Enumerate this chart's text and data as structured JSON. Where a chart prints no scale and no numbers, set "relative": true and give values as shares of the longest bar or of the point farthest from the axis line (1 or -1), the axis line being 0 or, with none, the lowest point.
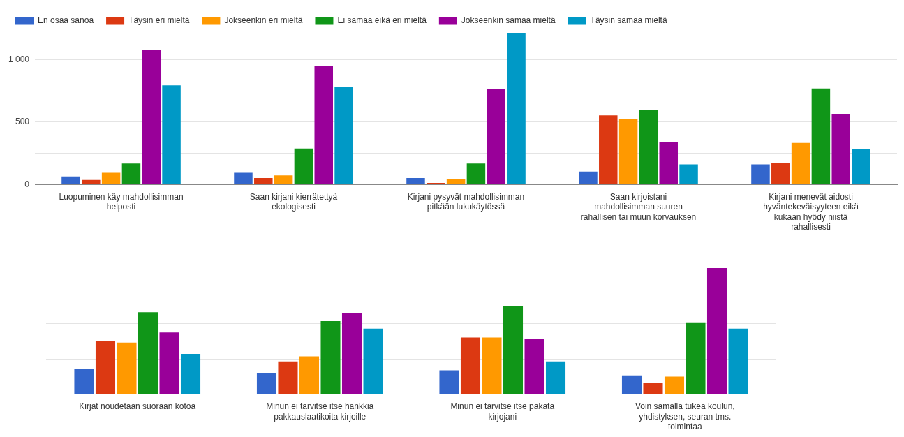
{
  "chart_data": [
    {
      "type": "bar",
      "categories": [
        "Luopuminen käy mahdollisimman helposti",
        "Saan kirjani kierrätettyä ekologisesti",
        "Kirjani pysyvät mahdollisimman pitkään lukukäytössä",
        "Saan kirjoistani mahdollisimman suuren rahallisen tai muun korvauksen",
        "Kirjani menevät aidosti hyväntekeväisyyteen eikä kukaan hyödy niistä rahallisesti"
      ],
      "series": [
        {
          "name": "En osaa sanoa",
          "color": "#3366cc",
          "values": [
            65,
            94,
            53,
            104,
            161
          ]
        },
        {
          "name": "Täysin eri mieltä",
          "color": "#dc3912",
          "values": [
            37,
            53,
            14,
            554,
            175
          ]
        },
        {
          "name": "Jokseenkin eri mieltä",
          "color": "#ff9900",
          "values": [
            94,
            74,
            44,
            527,
            333
          ]
        },
        {
          "name": "Ei samaa eikä eri mieltä",
          "color": "#109618",
          "values": [
            168,
            288,
            168,
            596,
            769
          ]
        },
        {
          "name": "Jokseenkin samaa mieltä",
          "color": "#990099",
          "values": [
            1081,
            947,
            762,
            339,
            561
          ]
        },
        {
          "name": "Täysin samaa mieltä",
          "color": "#0099c6",
          "values": [
            794,
            780,
            1215,
            161,
            284
          ]
        }
      ],
      "ylim": [
        0,
        1220
      ],
      "yticks": [
        0,
        {
          "value": 250,
          "label": null
        },
        500,
        {
          "value": 750,
          "label": null
        },
        {
          "value": 1000,
          "label": "1 000"
        }
      ],
      "grid": "y",
      "legend": "top"
    },
    {
      "type": "bar",
      "relative": true,
      "categories": [
        "Kirjat noudetaan suoraan kotoa",
        "Minun ei tarvitse itse hankkia pakkauslaatikoita kirjoille",
        "Minun ei tarvitse itse pakata kirjojani",
        "Voin samalla tukea koulun, yhdistyksen, seuran tms. toimintaa"
      ],
      "series": [
        {
          "color": "#3366cc",
          "values": [
            0.2,
            0.17,
            0.19,
            0.15
          ]
        },
        {
          "color": "#dc3912",
          "values": [
            0.42,
            0.26,
            0.45,
            0.09
          ]
        },
        {
          "color": "#ff9900",
          "values": [
            0.41,
            0.3,
            0.45,
            0.14
          ]
        },
        {
          "color": "#109618",
          "values": [
            0.65,
            0.58,
            0.7,
            0.57
          ]
        },
        {
          "color": "#990099",
          "values": [
            0.49,
            0.64,
            0.44,
            1
          ]
        },
        {
          "color": "#0099c6",
          "values": [
            0.32,
            0.52,
            0.26,
            0.52
          ]
        }
      ],
      "grid": "y"
    }
  ]
}
